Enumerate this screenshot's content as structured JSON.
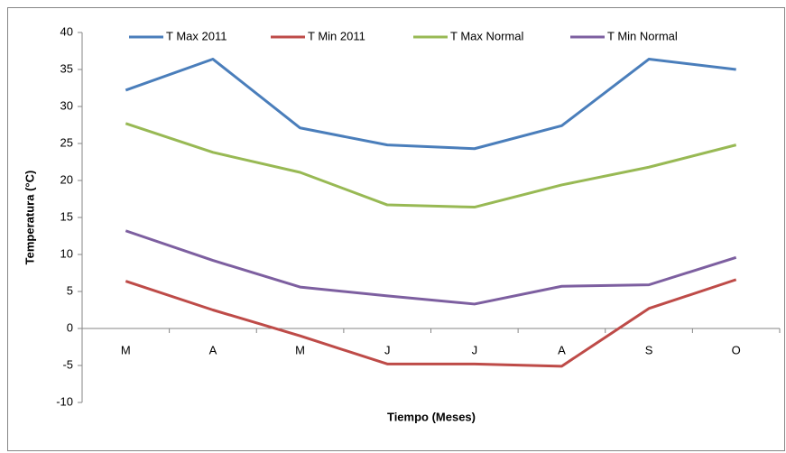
{
  "chart_data": {
    "type": "line",
    "y_label": "Temperatura (°C)",
    "x_label": "Tiempo (Meses)",
    "categories": [
      "M",
      "A",
      "M",
      "J",
      "J",
      "A",
      "S",
      "O"
    ],
    "series": [
      {
        "name": "T Max 2011",
        "color": "#4a7ebb",
        "values": [
          32.2,
          36.4,
          27.1,
          24.8,
          24.3,
          27.4,
          36.4,
          35.0
        ]
      },
      {
        "name": "T Min 2011",
        "color": "#be4b48",
        "values": [
          6.4,
          2.5,
          -1.0,
          -4.8,
          -4.8,
          -5.1,
          2.7,
          6.6
        ]
      },
      {
        "name": "T Max Normal",
        "color": "#98b954",
        "values": [
          27.7,
          23.8,
          21.1,
          16.7,
          16.4,
          19.4,
          21.8,
          24.8
        ]
      },
      {
        "name": "T Min Normal",
        "color": "#7d5fa0",
        "values": [
          13.2,
          9.2,
          5.6,
          4.4,
          3.3,
          5.7,
          5.9,
          9.6
        ]
      }
    ],
    "ylim": [
      -10,
      40
    ],
    "yticks": [
      -10,
      -5,
      0,
      5,
      10,
      15,
      20,
      25,
      30,
      35,
      40
    ],
    "grid": false,
    "legend": "top"
  }
}
